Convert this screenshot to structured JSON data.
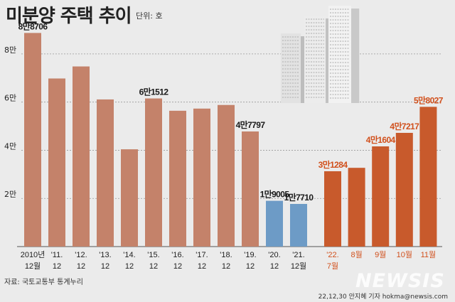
{
  "header": {
    "title": "미분양 주택 추이",
    "unit": "단위: 호"
  },
  "footer": {
    "source": "자료: 국토교통부 통계누리",
    "credit": "22,12,30 안지혜 기자 hokma@newsis.com",
    "logo": "NEWSIS"
  },
  "colors": {
    "annual": "#c4826a",
    "covid": "#6d9bc6",
    "recent": "#c85a2c",
    "recent_label": "#d1501c",
    "axis_text": "#222222",
    "background": "#ebebeb"
  },
  "illustration": "apartment-buildings",
  "chart_data": {
    "type": "bar",
    "ylim": [
      0,
      90000
    ],
    "yticks": [
      {
        "value": 20000,
        "label": "2만"
      },
      {
        "value": 40000,
        "label": "4만"
      },
      {
        "value": 60000,
        "label": "6만"
      },
      {
        "value": 80000,
        "label": "8만"
      }
    ],
    "grid": true,
    "bars": [
      {
        "line1": "2010년",
        "line2": "12월",
        "value": 88706,
        "label": "8만8706",
        "group": "annual"
      },
      {
        "line1": "'11.",
        "line2": "12",
        "value": 69800,
        "label": "",
        "group": "annual"
      },
      {
        "line1": "'12.",
        "line2": "12",
        "value": 74800,
        "label": "",
        "group": "annual"
      },
      {
        "line1": "'13.",
        "line2": "12",
        "value": 61100,
        "label": "",
        "group": "annual"
      },
      {
        "line1": "'14.",
        "line2": "12",
        "value": 40400,
        "label": "",
        "group": "annual"
      },
      {
        "line1": "'15.",
        "line2": "12",
        "value": 61512,
        "label": "6만1512",
        "group": "annual"
      },
      {
        "line1": "'16.",
        "line2": "12",
        "value": 56400,
        "label": "",
        "group": "annual"
      },
      {
        "line1": "'17.",
        "line2": "12",
        "value": 57300,
        "label": "",
        "group": "annual"
      },
      {
        "line1": "'18.",
        "line2": "12",
        "value": 58800,
        "label": "",
        "group": "annual"
      },
      {
        "line1": "'19.",
        "line2": "12",
        "value": 47797,
        "label": "4만7797",
        "group": "annual"
      },
      {
        "line1": "'20.",
        "line2": "12",
        "value": 19005,
        "label": "1만9005",
        "group": "covid"
      },
      {
        "line1": "'21.",
        "line2": "12월",
        "value": 17710,
        "label": "1만7710",
        "group": "covid"
      },
      {
        "line1": "'22.",
        "line2": "7월",
        "value": 31284,
        "label": "3만1284",
        "group": "recent"
      },
      {
        "line1": "8월",
        "line2": "",
        "value": 32700,
        "label": "",
        "group": "recent"
      },
      {
        "line1": "9월",
        "line2": "",
        "value": 41604,
        "label": "4만1604",
        "group": "recent"
      },
      {
        "line1": "10월",
        "line2": "",
        "value": 47217,
        "label": "4만7217",
        "group": "recent"
      },
      {
        "line1": "11월",
        "line2": "",
        "value": 58027,
        "label": "5만8027",
        "group": "recent"
      }
    ]
  }
}
